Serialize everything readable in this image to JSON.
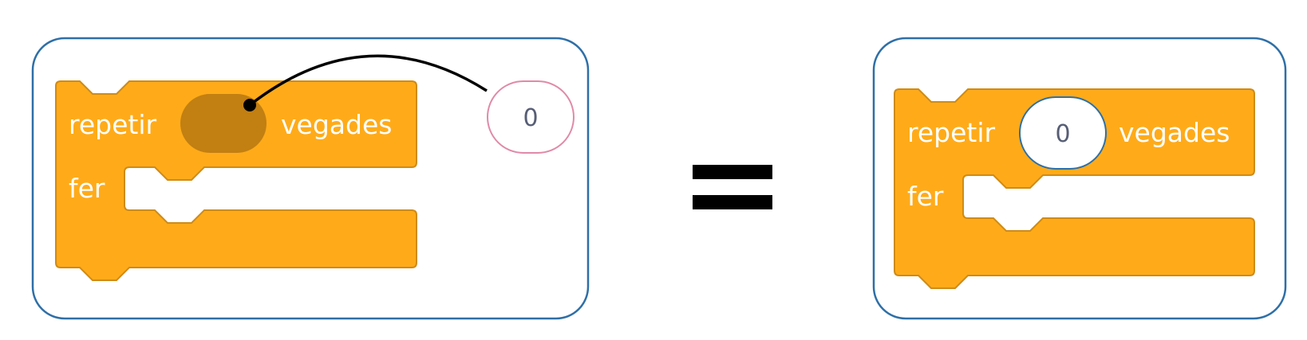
{
  "before": {
    "repeat_label": "repetir",
    "times_label": "vegades",
    "do_label": "fer",
    "loose_value": "0"
  },
  "after": {
    "repeat_label": "repetir",
    "times_label": "vegades",
    "do_label": "fer",
    "inserted_value": "0"
  },
  "colors": {
    "panel_border": "#2e6fa7",
    "block_fill": "#ffab19",
    "block_stroke": "#cf8b17",
    "empty_slot": "#c27f12",
    "value_fill": "#ffffff",
    "equals": "#000000"
  }
}
